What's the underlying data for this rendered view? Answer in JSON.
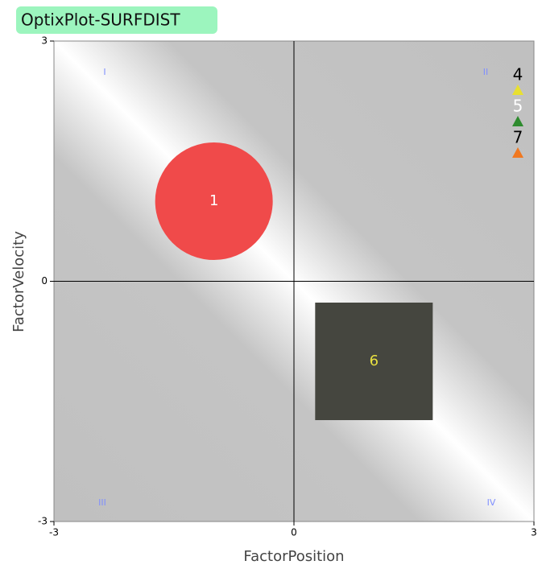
{
  "chart_data": {
    "type": "scatter",
    "title": "OptixPlot-SURFDIST",
    "xlabel": "FactorPosition",
    "ylabel": "FactorVelocity",
    "xlim": [
      -3,
      3
    ],
    "ylim": [
      -3,
      3
    ],
    "xticks": [
      -3,
      0,
      3
    ],
    "yticks": [
      -3,
      0,
      3
    ],
    "quadrant_labels": [
      "I",
      "II",
      "III",
      "IV"
    ],
    "points": [
      {
        "label": "1",
        "x": -1,
        "y": 1,
        "size": 1.47,
        "shape": "circle",
        "color": "#f04a4a",
        "label_color": "#ffffff"
      },
      {
        "label": "6",
        "x": 1,
        "y": -1,
        "size": 1.47,
        "shape": "square",
        "color": "#45463f",
        "label_color": "#e8e040"
      }
    ],
    "legend": [
      {
        "name": "4",
        "color": "#e8e030",
        "label_color": "#000000"
      },
      {
        "name": "5",
        "color": "#2e8b2e",
        "label_color": "#ffffff"
      },
      {
        "name": "7",
        "color": "#f07820",
        "label_color": "#000000"
      }
    ]
  }
}
